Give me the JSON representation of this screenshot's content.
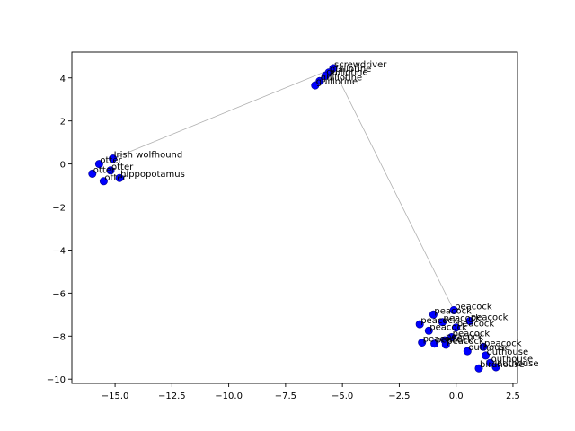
{
  "chart_data": {
    "type": "scatter",
    "title": "",
    "xlabel": "",
    "ylabel": "",
    "xlim": [
      -16.9,
      2.7
    ],
    "ylim": [
      -10.2,
      5.2
    ],
    "grid": false,
    "legend": "none",
    "colors": {
      "point": "#0000ff",
      "point_edge": "#00008b",
      "path": "#b0b0b0",
      "axis": "#000000",
      "background": "#ffffff"
    },
    "x_ticks": [
      {
        "value": -15.0,
        "label": "−15.0"
      },
      {
        "value": -12.5,
        "label": "−12.5"
      },
      {
        "value": -10.0,
        "label": "−10.0"
      },
      {
        "value": -7.5,
        "label": "−7.5"
      },
      {
        "value": -5.0,
        "label": "−5.0"
      },
      {
        "value": -2.5,
        "label": "−2.5"
      },
      {
        "value": 0.0,
        "label": "0.0"
      },
      {
        "value": 2.5,
        "label": "2.5"
      }
    ],
    "y_ticks": [
      {
        "value": 4,
        "label": "4"
      },
      {
        "value": 2,
        "label": "2"
      },
      {
        "value": 0,
        "label": "0"
      },
      {
        "value": -2,
        "label": "−2"
      },
      {
        "value": -4,
        "label": "−4"
      },
      {
        "value": -6,
        "label": "−6"
      },
      {
        "value": -8,
        "label": "−8"
      },
      {
        "value": -10,
        "label": "−10"
      }
    ],
    "points": [
      {
        "x": -15.1,
        "y": 0.25,
        "label": "Irish wolfhound"
      },
      {
        "x": -15.7,
        "y": 0.0,
        "label": "otter"
      },
      {
        "x": -16.0,
        "y": -0.45,
        "label": "otter"
      },
      {
        "x": -15.2,
        "y": -0.3,
        "label": "otter"
      },
      {
        "x": -14.8,
        "y": -0.65,
        "label": "hippopotamus"
      },
      {
        "x": -15.5,
        "y": -0.8,
        "label": "otter"
      },
      {
        "x": -5.4,
        "y": 4.45,
        "label": "screwdriver"
      },
      {
        "x": -5.6,
        "y": 4.25,
        "label": "guillotine"
      },
      {
        "x": -5.75,
        "y": 4.1,
        "label": "guillotine"
      },
      {
        "x": -6.0,
        "y": 3.85,
        "label": "guillotine"
      },
      {
        "x": -6.2,
        "y": 3.65,
        "label": "guillotine"
      },
      {
        "x": -0.1,
        "y": -6.8,
        "label": "peacock"
      },
      {
        "x": -1.0,
        "y": -7.0,
        "label": "peacock"
      },
      {
        "x": 0.6,
        "y": -7.3,
        "label": "peacock"
      },
      {
        "x": -0.6,
        "y": -7.35,
        "label": "peacock"
      },
      {
        "x": -1.6,
        "y": -7.45,
        "label": "peacock"
      },
      {
        "x": 0.0,
        "y": -7.6,
        "label": "peacock"
      },
      {
        "x": -1.2,
        "y": -7.75,
        "label": "peacock"
      },
      {
        "x": -0.2,
        "y": -8.05,
        "label": "peacock"
      },
      {
        "x": -0.5,
        "y": -8.2,
        "label": "peacock"
      },
      {
        "x": -1.5,
        "y": -8.3,
        "label": "peacock"
      },
      {
        "x": -0.95,
        "y": -8.35,
        "label": "peacock"
      },
      {
        "x": -0.45,
        "y": -8.4,
        "label": "peacock"
      },
      {
        "x": 1.2,
        "y": -8.5,
        "label": "peacock"
      },
      {
        "x": 0.5,
        "y": -8.7,
        "label": "outhouse"
      },
      {
        "x": 1.3,
        "y": -8.9,
        "label": "outhouse"
      },
      {
        "x": 1.5,
        "y": -9.25,
        "label": "outhouse"
      },
      {
        "x": 1.75,
        "y": -9.45,
        "label": "outhouse"
      },
      {
        "x": 1.0,
        "y": -9.5,
        "label": "birdhouse"
      }
    ],
    "path": [
      {
        "x": -15.1,
        "y": 0.25
      },
      {
        "x": -5.4,
        "y": 4.45
      },
      {
        "x": -0.1,
        "y": -6.8
      }
    ]
  }
}
